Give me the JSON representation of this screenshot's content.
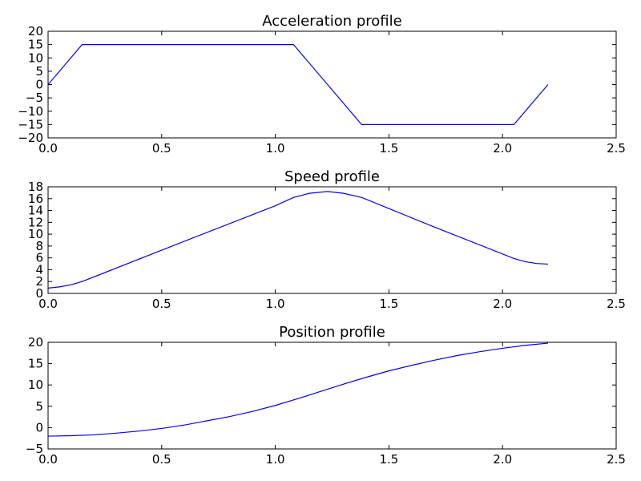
{
  "chart_data": [
    {
      "type": "line",
      "title": "Acceleration profile",
      "xlabel": "",
      "ylabel": "",
      "xlim": [
        0.0,
        2.5
      ],
      "ylim": [
        -20,
        20
      ],
      "xticks": [
        "0.0",
        "0.5",
        "1.0",
        "1.5",
        "2.0",
        "2.5"
      ],
      "yticks": [
        "20",
        "15",
        "10",
        "5",
        "0",
        "−5",
        "−10",
        "−15",
        "−20"
      ],
      "grid": false,
      "series": [
        {
          "color": "#0000ff",
          "x": [
            0.0,
            0.15,
            1.08,
            1.38,
            2.05,
            2.2
          ],
          "y": [
            0,
            15,
            15,
            -15,
            -15,
            0
          ]
        }
      ]
    },
    {
      "type": "line",
      "title": "Speed profile",
      "xlabel": "",
      "ylabel": "",
      "xlim": [
        0.0,
        2.5
      ],
      "ylim": [
        0,
        18
      ],
      "xticks": [
        "0.0",
        "0.5",
        "1.0",
        "1.5",
        "2.0",
        "2.5"
      ],
      "yticks": [
        "18",
        "16",
        "14",
        "12",
        "10",
        "8",
        "6",
        "4",
        "2",
        "0"
      ],
      "grid": false,
      "series": [
        {
          "color": "#0000ff",
          "x": [
            0.0,
            0.05,
            0.1,
            0.15,
            0.5,
            1.0,
            1.08,
            1.15,
            1.23,
            1.3,
            1.38,
            1.7,
            2.05,
            2.1,
            2.15,
            2.2
          ],
          "y": [
            0.9,
            1.1,
            1.45,
            2.0,
            7.3,
            14.8,
            16.2,
            16.9,
            17.2,
            16.9,
            16.2,
            11.2,
            5.9,
            5.35,
            5.05,
            4.95
          ]
        }
      ]
    },
    {
      "type": "line",
      "title": "Position profile",
      "xlabel": "",
      "ylabel": "",
      "xlim": [
        0.0,
        2.5
      ],
      "ylim": [
        -5,
        20
      ],
      "xticks": [
        "0.0",
        "0.5",
        "1.0",
        "1.5",
        "2.0",
        "2.5"
      ],
      "yticks": [
        "20",
        "15",
        "10",
        "5",
        "0",
        "−5"
      ],
      "grid": false,
      "series": [
        {
          "color": "#0000ff",
          "x": [
            0.0,
            0.1,
            0.2,
            0.3,
            0.4,
            0.5,
            0.6,
            0.7,
            0.8,
            0.9,
            1.0,
            1.1,
            1.2,
            1.3,
            1.4,
            1.5,
            1.6,
            1.7,
            1.8,
            1.9,
            2.0,
            2.1,
            2.2
          ],
          "y": [
            -2.0,
            -1.9,
            -1.7,
            -1.3,
            -0.8,
            -0.2,
            0.6,
            1.6,
            2.6,
            3.8,
            5.2,
            6.8,
            8.5,
            10.2,
            11.8,
            13.3,
            14.6,
            15.8,
            16.9,
            17.8,
            18.6,
            19.3,
            19.8
          ]
        }
      ]
    }
  ]
}
